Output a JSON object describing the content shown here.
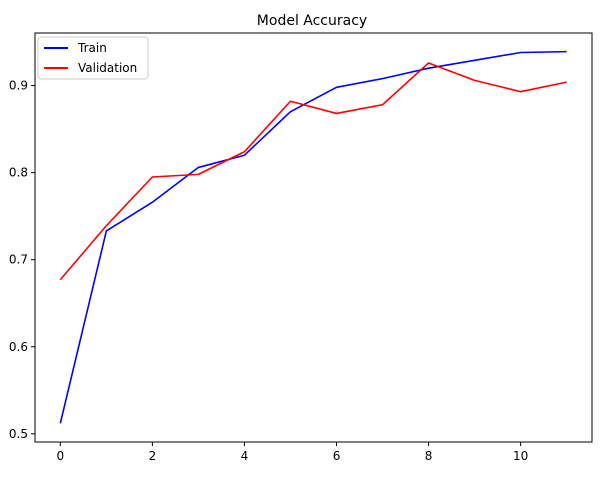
{
  "chart_data": {
    "type": "line",
    "title": "Model Accuracy",
    "xlabel": "",
    "ylabel": "",
    "x": [
      0,
      1,
      2,
      3,
      4,
      5,
      6,
      7,
      8,
      9,
      10,
      11
    ],
    "series": [
      {
        "name": "Train",
        "color": "#0000ff",
        "values": [
          0.512,
          0.733,
          0.766,
          0.806,
          0.82,
          0.87,
          0.898,
          0.908,
          0.92,
          0.929,
          0.938,
          0.939
        ]
      },
      {
        "name": "Validation",
        "color": "#ff0000",
        "values": [
          0.677,
          0.739,
          0.795,
          0.798,
          0.824,
          0.882,
          0.868,
          0.878,
          0.926,
          0.906,
          0.893,
          0.904
        ]
      }
    ],
    "xlim": [
      -0.55,
      11.55
    ],
    "ylim": [
      0.4906,
      0.9604
    ],
    "xticks": [
      0,
      2,
      4,
      6,
      8,
      10
    ],
    "xtick_labels": [
      "0",
      "2",
      "4",
      "6",
      "8",
      "10"
    ],
    "yticks": [
      0.5,
      0.6,
      0.7,
      0.8,
      0.9
    ],
    "ytick_labels": [
      "0.5",
      "0.6",
      "0.7",
      "0.8",
      "0.9"
    ],
    "grid": false,
    "legend_position": "top-left"
  }
}
